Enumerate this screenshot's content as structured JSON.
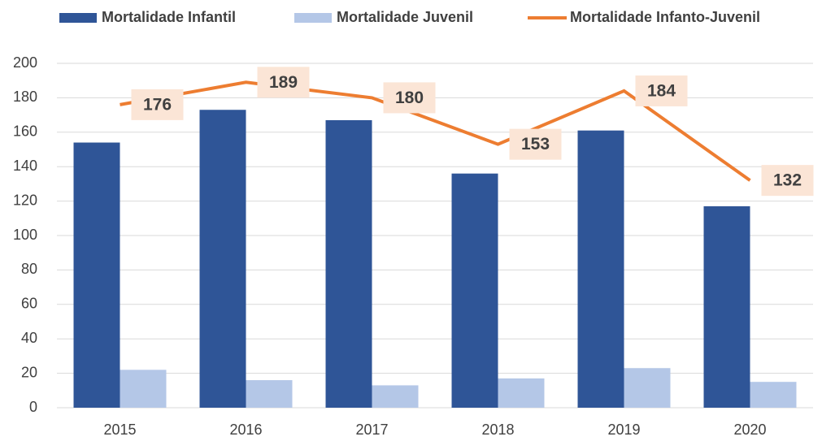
{
  "chart_data": {
    "type": "bar",
    "categories": [
      "2015",
      "2016",
      "2017",
      "2018",
      "2019",
      "2020"
    ],
    "series": [
      {
        "name": "Mortalidade Infantil",
        "type": "bar",
        "color": "#2f5597",
        "values": [
          154,
          173,
          167,
          136,
          161,
          117
        ]
      },
      {
        "name": "Mortalidade Juvenil",
        "type": "bar",
        "color": "#b4c7e7",
        "values": [
          22,
          16,
          13,
          17,
          23,
          15
        ]
      },
      {
        "name": "Mortalidade Infanto-Juvenil",
        "type": "line",
        "color": "#ed7d31",
        "values": [
          176,
          189,
          180,
          153,
          184,
          132
        ],
        "data_labels": true
      }
    ],
    "ylim": [
      0,
      200
    ],
    "yticks": [
      0,
      20,
      40,
      60,
      80,
      100,
      120,
      140,
      160,
      180,
      200
    ],
    "grid": true,
    "legend": "top"
  }
}
